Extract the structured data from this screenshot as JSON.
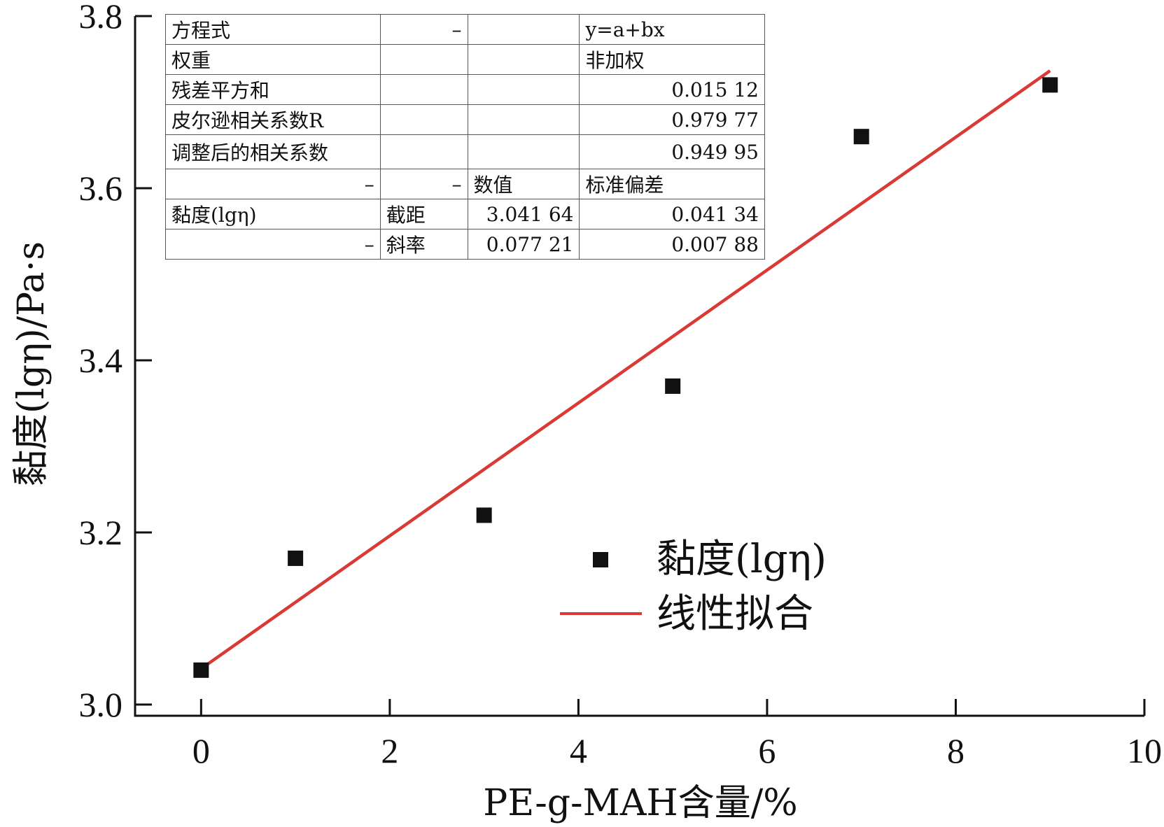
{
  "chart_data": {
    "type": "scatter",
    "xlabel": "PE-g-MAH含量/%",
    "ylabel": "黏度(lgη)/Pa·s",
    "xlim": [
      -0.7,
      10
    ],
    "ylim": [
      2.987,
      3.8
    ],
    "xticks": [
      "0",
      "2",
      "4",
      "6",
      "8",
      "10"
    ],
    "xtick_values": [
      0,
      2,
      4,
      6,
      8,
      10
    ],
    "yticks": [
      "3.0",
      "3.2",
      "3.4",
      "3.6",
      "3.8"
    ],
    "ytick_values": [
      3.0,
      3.2,
      3.4,
      3.6,
      3.8
    ],
    "series": [
      {
        "name": "黏度(lgη)",
        "kind": "scatter",
        "marker": "square",
        "color": "#111111",
        "points": [
          {
            "x": 0,
            "y": 3.04
          },
          {
            "x": 1,
            "y": 3.17
          },
          {
            "x": 3,
            "y": 3.22
          },
          {
            "x": 5,
            "y": 3.37
          },
          {
            "x": 7,
            "y": 3.66
          },
          {
            "x": 9,
            "y": 3.72
          }
        ]
      },
      {
        "name": "线性拟合",
        "kind": "line",
        "color": "#d93a35",
        "intercept": 3.04164,
        "slope": 0.07721,
        "x_range": [
          0,
          9
        ]
      }
    ],
    "legend": {
      "position": "lower-right"
    },
    "grid": false
  },
  "fit_table": {
    "rows": [
      [
        "方程式",
        "–",
        "",
        "y=a+bx"
      ],
      [
        "权重",
        "",
        "",
        "非加权"
      ],
      [
        "残差平方和",
        "",
        "",
        "0.015 12"
      ],
      [
        "皮尔逊相关系数R",
        "",
        "",
        "0.979 77"
      ],
      [
        "调整后的相关系数",
        "",
        "",
        "0.949 95"
      ],
      [
        "–",
        "–",
        "数值",
        "标准偏差"
      ],
      [
        "黏度(lgη)",
        "截距",
        "3.041 64",
        "0.041 34"
      ],
      [
        "–",
        "斜率",
        "0.077 21",
        "0.007 88"
      ]
    ]
  }
}
